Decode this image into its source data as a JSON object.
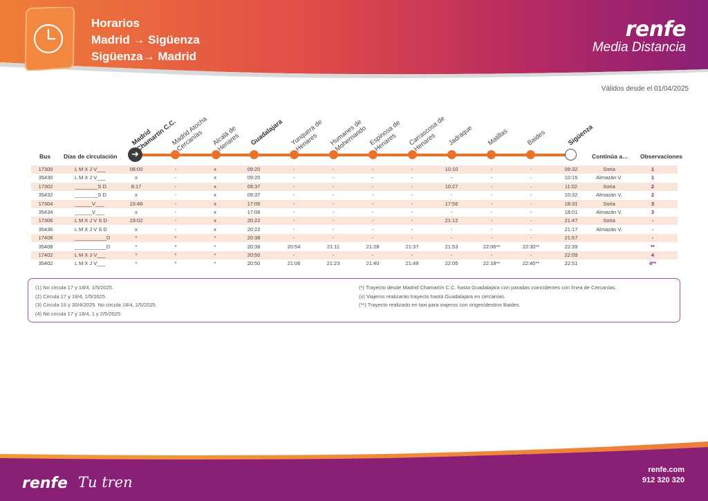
{
  "header": {
    "title": "Horarios",
    "route_out": "Madrid → Sigüenza",
    "route_back": "Sigüenza→ Madrid",
    "brand_logo": "renfe",
    "brand_sub": "Media Distancia",
    "clock_icon": "clock-icon",
    "colors": {
      "orange": "#ee7d3b",
      "red": "#d9404e",
      "purple": "#8a1f76"
    }
  },
  "valid_from": "Válidos desde el 01/04/2025",
  "table": {
    "col_bus": "Bus",
    "col_days": "Días de circulación",
    "col_continua": "Continúa a…",
    "col_obs": "Observaciones",
    "stops": [
      "Madrid Chamartín C.C.",
      "Madrid Atocha Cercanías",
      "Alcalá de Henares",
      "Guadalajara",
      "Yunquera de Henares",
      "Humanes de Mohernando",
      "Espinosa de Henares",
      "Carrascosa de Henares",
      "Jadraque",
      "Matillas",
      "Baides",
      "Sigüenza"
    ],
    "rows": [
      [
        "17300",
        "L M X J V___",
        "08:00",
        "-",
        "x",
        "09:20",
        "-",
        "-",
        "-",
        "-",
        "10:10",
        "-",
        "-",
        "09:32",
        "Soria",
        "1"
      ],
      [
        "35430",
        "L M X J V___",
        "x",
        "-",
        "x",
        "09:20",
        "-",
        "-",
        "-",
        "-",
        "-",
        "-",
        "-",
        "10:15",
        "Almazán V.",
        "1"
      ],
      [
        "17302",
        "________S D",
        "8:17",
        "-",
        "x",
        "09:37",
        "-",
        "-",
        "-",
        "-",
        "10:27",
        "-",
        "-",
        "11:02",
        "Soria",
        "2"
      ],
      [
        "35432",
        "________S D",
        "x",
        "-",
        "x",
        "09:37",
        "-",
        "-",
        "-",
        "-",
        "-",
        "-",
        "-",
        "10:32",
        "Almazán V.",
        "2"
      ],
      [
        "17304",
        "______V___",
        "15:46",
        "-",
        "x",
        "17:06",
        "-",
        "-",
        "-",
        "-",
        "17:56",
        "-",
        "-",
        "18:31",
        "Soria",
        "3"
      ],
      [
        "35434",
        "______V___",
        "x",
        "-",
        "x",
        "17:06",
        "-",
        "-",
        "-",
        "-",
        "-",
        "-",
        "-",
        "18:01",
        "Almazán V.",
        "3"
      ],
      [
        "17306",
        "L M X J V S D",
        "19:02",
        "-",
        "x",
        "20:22",
        "-",
        "-",
        "-",
        "-",
        "21:12",
        "-",
        "-",
        "21:47",
        "Soria",
        "-"
      ],
      [
        "35436",
        "L M X J V S D",
        "x",
        "-",
        "x",
        "20:22",
        "-",
        "-",
        "-",
        "-",
        "-",
        "-",
        "-",
        "21:17",
        "Almazán V.",
        "-"
      ],
      [
        "17408",
        "___________D",
        "*",
        "*",
        "*",
        "20:38",
        "-",
        "-",
        "-",
        "-",
        "-",
        "-",
        "-",
        "21:57",
        "",
        "-"
      ],
      [
        "35408",
        "___________D",
        "*",
        "*",
        "*",
        "20:38",
        "20:54",
        "21:11",
        "21:28",
        "21:37",
        "21:53",
        "22:06**",
        "22:30**",
        "22:39",
        "",
        "**"
      ],
      [
        "17402",
        "L M X J V___",
        "*",
        "*",
        "*",
        "20:50",
        "-",
        "-",
        "-",
        "-",
        "-",
        "-",
        "-",
        "22:09",
        "",
        "4"
      ],
      [
        "35402",
        "L M X J V___",
        "*",
        "*",
        "*",
        "20:50",
        "21:06",
        "21:23",
        "21:40",
        "21:49",
        "22:05",
        "22:18**",
        "22:40**",
        "22:51",
        "",
        "4**"
      ]
    ]
  },
  "notes": {
    "left": [
      "(1) No circula 17 y 18/4, 1/5/2025.",
      "(2) Circula 17 y 18/4, 1/5/2025.",
      "(3) Circula 16 y 30/4/2025. No circula 18/4, 2/5/2025.",
      "(4) No circula 17 y 18/4, 1 y 2/5/2025."
    ],
    "right": [
      "(*) Trayecto desde Madrid Chamartín C.C. hasta Guadalajara con paradas coincidentes con línea de Cercanías.",
      "(x)   Viajeros realizarán trayecto hasta Guadalajara en cercanías.",
      "(**) Trayecto realizado en taxi para viajeros con origen/destino Baides."
    ]
  },
  "footer": {
    "logo": "renfe",
    "slogan": "Tu tren",
    "website": "renfe.com",
    "phone": "912 320 320"
  }
}
